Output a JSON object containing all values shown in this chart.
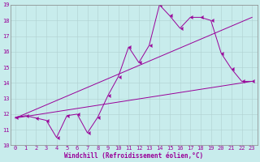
{
  "xlabel": "Windchill (Refroidissement éolien,°C)",
  "background_color": "#c8ecec",
  "line_color": "#990099",
  "grid_color": "#b0d0d0",
  "spine_color": "#888888",
  "xlim": [
    -0.5,
    23.5
  ],
  "ylim": [
    10,
    19
  ],
  "xticks": [
    0,
    1,
    2,
    3,
    4,
    5,
    6,
    7,
    8,
    9,
    10,
    11,
    12,
    13,
    14,
    15,
    16,
    17,
    18,
    19,
    20,
    21,
    22,
    23
  ],
  "yticks": [
    10,
    11,
    12,
    13,
    14,
    15,
    16,
    17,
    18,
    19
  ],
  "series1_x": [
    0,
    1,
    2,
    3,
    4,
    5,
    6,
    7,
    8,
    9,
    10,
    11,
    12,
    13,
    14,
    15,
    16,
    17,
    18,
    19,
    20,
    21,
    22,
    23
  ],
  "series1_y": [
    11.8,
    11.9,
    11.75,
    11.6,
    10.5,
    11.9,
    12.0,
    10.8,
    11.8,
    13.2,
    14.4,
    16.3,
    15.3,
    16.4,
    19.0,
    18.3,
    17.5,
    18.2,
    18.2,
    18.0,
    15.9,
    14.9,
    14.1,
    14.1
  ],
  "trend1_x": [
    0,
    23
  ],
  "trend1_y": [
    11.75,
    18.2
  ],
  "trend2_x": [
    0,
    23
  ],
  "trend2_y": [
    11.75,
    14.1
  ],
  "fontsize_ticks": 5,
  "fontsize_xlabel": 5.5,
  "marker": 4
}
